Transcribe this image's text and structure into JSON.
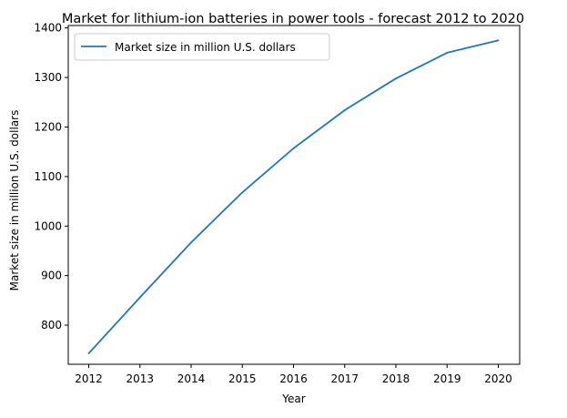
{
  "chart_data": {
    "type": "line",
    "title": "Market for lithium-ion batteries in power tools - forecast 2012 to 2020",
    "xlabel": "Year",
    "ylabel": "Market size in million U.S. dollars",
    "categories": [
      "2012",
      "2013",
      "2014",
      "2015",
      "2016",
      "2017",
      "2018",
      "2019",
      "2020"
    ],
    "series": [
      {
        "name": "Market size in million U.S. dollars",
        "values": [
          743,
          856,
          967,
          1068,
          1157,
          1234,
          1298,
          1350,
          1375
        ],
        "color": "#1f77b4"
      }
    ],
    "yticks": [
      800,
      900,
      1000,
      1100,
      1200,
      1300,
      1400
    ],
    "ylim": [
      721,
      1405
    ],
    "grid": false,
    "legend_position": "top-left"
  }
}
